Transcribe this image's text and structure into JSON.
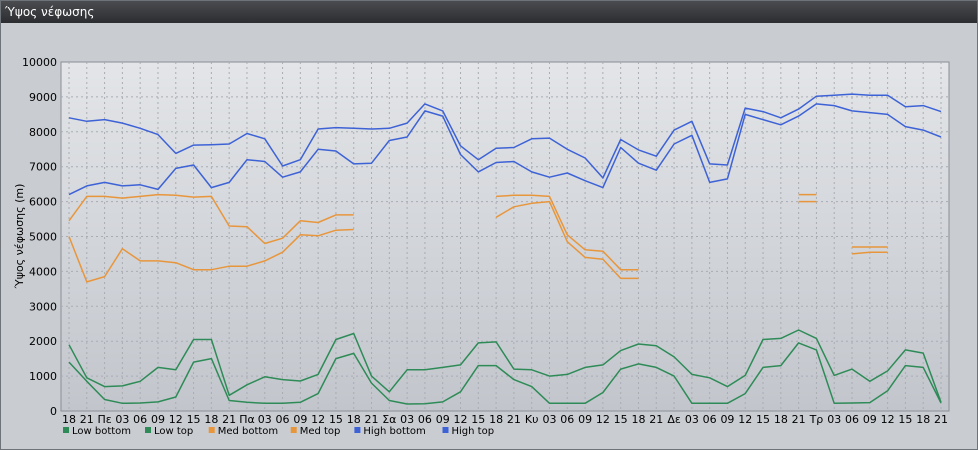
{
  "window": {
    "title": "Ύψος νέφωσης"
  },
  "chart_data": {
    "type": "line",
    "title": "",
    "xlabel": "",
    "ylabel": "Ύψος νέφωσης (m)",
    "ylim": [
      0,
      10000
    ],
    "yticks": [
      0,
      1000,
      2000,
      3000,
      4000,
      5000,
      6000,
      7000,
      8000,
      9000,
      10000
    ],
    "grid": true,
    "legend_position": "bottom-left",
    "x_tick_labels": [
      "18",
      "21",
      "Πε",
      "03",
      "06",
      "09",
      "12",
      "15",
      "18",
      "21",
      "Πα",
      "03",
      "06",
      "09",
      "12",
      "15",
      "18",
      "21",
      "Σα",
      "03",
      "06",
      "09",
      "12",
      "15",
      "18",
      "21",
      "Κυ",
      "03",
      "06",
      "09",
      "12",
      "15",
      "18",
      "21",
      "Δε",
      "03",
      "06",
      "09",
      "12",
      "15",
      "18",
      "21",
      "Τρ",
      "03",
      "06",
      "09",
      "12",
      "15",
      "18",
      "21"
    ],
    "series": [
      {
        "name": "Low bottom",
        "color": "#2e8b57",
        "values": [
          1400,
          850,
          330,
          220,
          230,
          260,
          400,
          1400,
          1500,
          300,
          250,
          220,
          220,
          250,
          500,
          1500,
          1650,
          800,
          300,
          200,
          210,
          260,
          550,
          1300,
          1300,
          900,
          700,
          220,
          220,
          220,
          530,
          1200,
          1350,
          1250,
          1000,
          220,
          220,
          220,
          500,
          1250,
          1300,
          1950,
          1750,
          220,
          230,
          240,
          580,
          1300,
          1250,
          230
        ]
      },
      {
        "name": "Low top",
        "color": "#2e8b57",
        "values": [
          1900,
          950,
          700,
          720,
          850,
          1250,
          1180,
          2050,
          2050,
          450,
          750,
          980,
          900,
          860,
          1050,
          2050,
          2220,
          1000,
          550,
          1180,
          1180,
          1250,
          1320,
          1950,
          1980,
          1200,
          1180,
          1000,
          1050,
          1250,
          1320,
          1730,
          1920,
          1870,
          1550,
          1050,
          950,
          700,
          1020,
          2050,
          2080,
          2320,
          2080,
          1020,
          1200,
          850,
          1150,
          1750,
          1660,
          250
        ]
      },
      {
        "name": "Med bottom",
        "color": "#e8963c",
        "values": [
          5000,
          3700,
          3850,
          4650,
          4300,
          4300,
          4250,
          4050,
          4050,
          4150,
          4150,
          4300,
          4550,
          5050,
          5020,
          5180,
          5200,
          null,
          null,
          null,
          null,
          null,
          null,
          null,
          5550,
          5850,
          5950,
          6000,
          4850,
          4400,
          4350,
          3800,
          3800,
          null,
          null,
          null,
          null,
          null,
          null,
          null,
          null,
          6000,
          6000,
          null,
          4500,
          4550,
          4550,
          null,
          null,
          null
        ]
      },
      {
        "name": "Med top",
        "color": "#e8963c",
        "values": [
          5450,
          6150,
          6150,
          6100,
          6150,
          6200,
          6180,
          6130,
          6150,
          5300,
          5280,
          4800,
          4950,
          5450,
          5400,
          5620,
          5620,
          null,
          null,
          null,
          null,
          null,
          null,
          null,
          6150,
          6180,
          6180,
          6150,
          5050,
          4620,
          4580,
          4050,
          4050,
          null,
          null,
          null,
          null,
          null,
          null,
          null,
          null,
          6200,
          6200,
          null,
          4700,
          4700,
          4700,
          null,
          null,
          null
        ]
      },
      {
        "name": "High bottom",
        "color": "#3d62d6",
        "values": [
          6200,
          6450,
          6550,
          6450,
          6480,
          6350,
          6950,
          7050,
          6400,
          6550,
          7200,
          7150,
          6700,
          6850,
          7500,
          7450,
          7080,
          7100,
          7750,
          7850,
          8600,
          8450,
          7350,
          6850,
          7120,
          7150,
          6850,
          6700,
          6820,
          6600,
          6400,
          7550,
          7100,
          6900,
          7650,
          7900,
          6550,
          6650,
          8500,
          8350,
          8200,
          8450,
          8800,
          8750,
          8600,
          8550,
          8500,
          8150,
          8050,
          7850
        ]
      },
      {
        "name": "High top",
        "color": "#3d62d6",
        "values": [
          8400,
          8300,
          8350,
          8250,
          8100,
          7920,
          7380,
          7620,
          7630,
          7650,
          7950,
          7800,
          7020,
          7200,
          8080,
          8120,
          8100,
          8080,
          8100,
          8250,
          8800,
          8600,
          7600,
          7200,
          7530,
          7550,
          7800,
          7820,
          7500,
          7250,
          6680,
          7780,
          7480,
          7300,
          8050,
          8300,
          7080,
          7050,
          8680,
          8580,
          8400,
          8650,
          9020,
          9050,
          9080,
          9050,
          9050,
          8720,
          8750,
          8580
        ]
      }
    ]
  }
}
